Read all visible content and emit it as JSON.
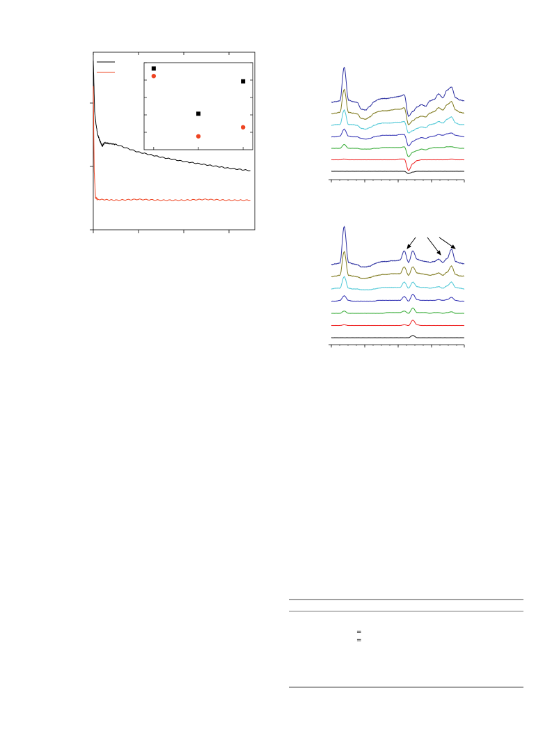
{
  "colors": {
    "black": "#000000",
    "red": "#ee4422",
    "navy": "#2b2fa0",
    "olive": "#7f7a1e",
    "cyan": "#4cc7d6",
    "blue": "#3232b4",
    "green": "#33aa33",
    "red_spec": "#ee2020",
    "black_spec": "#111111"
  },
  "table_marks": [
    "=",
    "="
  ],
  "chart_data": [
    {
      "type": "line",
      "grid": false,
      "legend_position": "top-left",
      "series": [
        {
          "color": "black",
          "x": [
            0.0,
            0.03,
            0.06,
            0.1,
            0.15,
            0.2,
            0.25,
            0.35,
            0.5,
            1.0,
            1.5,
            2.0,
            2.5,
            3.0,
            3.5
          ],
          "y": [
            2.0,
            1.4,
            1.25,
            1.12,
            1.05,
            0.99,
            1.03,
            1.02,
            1.01,
            0.92,
            0.86,
            0.81,
            0.77,
            0.73,
            0.7
          ]
        },
        {
          "color": "red",
          "x": [
            0.0,
            0.02,
            0.05,
            0.1,
            0.5,
            1.0,
            1.5,
            2.0,
            2.5,
            3.0,
            3.5
          ],
          "y": [
            1.7,
            0.7,
            0.38,
            0.36,
            0.35,
            0.36,
            0.35,
            0.35,
            0.36,
            0.35,
            0.35
          ]
        }
      ],
      "xlim": [
        0,
        3.6
      ],
      "ylim": [
        0,
        2.1
      ],
      "inset": {
        "type": "scatter",
        "xlim": [
          0,
          3.6
        ],
        "ylim": [
          0,
          1.1
        ],
        "series": [
          {
            "color": "black",
            "marker": "square",
            "x": [
              0.15,
              1.8,
              3.45
            ],
            "y": [
              1.05,
              0.45,
              0.88
            ]
          },
          {
            "color": "red",
            "marker": "circle",
            "x": [
              0.15,
              1.8,
              3.45
            ],
            "y": [
              0.95,
              0.15,
              0.27
            ]
          }
        ]
      }
    },
    {
      "type": "line",
      "panel": "upper",
      "grid": false,
      "series": [
        {
          "color": "navy",
          "y": [
            0.0,
            0.1,
            0.2,
            4.6,
            0.3,
            0.1,
            0.0,
            -0.9,
            -1.0,
            -0.5,
            0.1,
            0.4,
            0.5,
            0.5,
            0.6,
            0.7,
            0.8,
            1.0,
            -1.8,
            -1.2,
            -0.6,
            -0.3,
            -0.5,
            0.2,
            0.4,
            1.1,
            0.6,
            1.6,
            2.0,
            0.6,
            0.3,
            0.2
          ]
        },
        {
          "color": "olive",
          "y": [
            0.0,
            0.1,
            0.2,
            3.2,
            0.2,
            0.1,
            0.0,
            -0.6,
            -0.7,
            -0.4,
            0.1,
            0.3,
            0.4,
            0.4,
            0.5,
            0.6,
            0.6,
            0.8,
            -1.4,
            -0.9,
            -0.5,
            -0.3,
            -0.4,
            0.1,
            0.3,
            0.8,
            0.5,
            1.2,
            1.6,
            0.5,
            0.2,
            0.1
          ]
        },
        {
          "color": "cyan",
          "y": [
            0.0,
            0.1,
            0.1,
            2.0,
            0.1,
            0.1,
            0.0,
            -0.4,
            -0.5,
            -0.3,
            0.0,
            0.2,
            0.3,
            0.3,
            0.3,
            0.4,
            0.4,
            0.5,
            -1.0,
            -0.7,
            -0.4,
            -0.2,
            -0.3,
            0.1,
            0.2,
            0.5,
            0.3,
            0.8,
            1.1,
            0.3,
            0.1,
            0.1
          ]
        },
        {
          "color": "blue",
          "y": [
            0.0,
            0.0,
            0.1,
            1.0,
            0.1,
            0.0,
            0.0,
            -0.2,
            -0.3,
            -0.2,
            0.0,
            0.1,
            0.2,
            0.2,
            0.2,
            0.2,
            0.3,
            0.3,
            -1.2,
            -0.6,
            -0.3,
            -0.1,
            -0.2,
            0.0,
            0.1,
            0.3,
            0.2,
            0.4,
            0.5,
            0.2,
            0.1,
            0.0
          ]
        },
        {
          "color": "green",
          "y": [
            0.0,
            0.0,
            0.0,
            0.5,
            0.0,
            0.0,
            0.0,
            -0.1,
            -0.1,
            -0.1,
            0.0,
            0.0,
            0.1,
            0.1,
            0.1,
            0.1,
            0.1,
            0.2,
            -1.1,
            -0.5,
            -0.3,
            -0.1,
            -0.2,
            0.0,
            0.1,
            0.1,
            0.1,
            0.2,
            0.2,
            0.1,
            0.0,
            0.0
          ]
        },
        {
          "color": "red_spec",
          "y": [
            0.0,
            0.0,
            0.0,
            0.1,
            0.0,
            0.0,
            0.0,
            0.0,
            0.0,
            0.0,
            0.0,
            0.0,
            0.0,
            0.0,
            0.0,
            0.0,
            0.1,
            0.1,
            -1.4,
            -0.5,
            -0.1,
            0.0,
            0.0,
            0.0,
            0.0,
            0.0,
            0.0,
            0.0,
            0.1,
            0.0,
            0.0,
            0.0
          ]
        },
        {
          "color": "black_spec",
          "y": [
            0.0,
            0.0,
            0.0,
            0.0,
            0.0,
            0.0,
            0.0,
            0.0,
            0.0,
            0.0,
            0.0,
            0.0,
            0.0,
            0.0,
            0.0,
            0.0,
            0.0,
            0.0,
            -0.3,
            -0.1,
            0.0,
            0.0,
            0.0,
            0.0,
            0.0,
            0.0,
            0.0,
            0.0,
            0.0,
            0.0,
            0.0,
            0.0
          ]
        }
      ]
    },
    {
      "type": "line",
      "panel": "lower",
      "grid": false,
      "series": [
        {
          "color": "navy",
          "y": [
            0.0,
            0.1,
            0.2,
            5.0,
            0.3,
            0.1,
            0.0,
            -0.3,
            -0.3,
            -0.2,
            0.1,
            0.3,
            0.4,
            0.4,
            0.5,
            0.5,
            0.6,
            1.8,
            0.3,
            1.8,
            0.7,
            0.5,
            0.4,
            0.3,
            0.4,
            0.7,
            0.3,
            0.8,
            2.0,
            0.4,
            0.2,
            0.1
          ]
        },
        {
          "color": "olive",
          "y": [
            0.0,
            0.1,
            0.2,
            3.3,
            0.2,
            0.1,
            0.0,
            -0.2,
            -0.2,
            -0.1,
            0.1,
            0.2,
            0.3,
            0.3,
            0.4,
            0.4,
            0.4,
            1.3,
            0.2,
            1.3,
            0.5,
            0.4,
            0.3,
            0.2,
            0.3,
            0.5,
            0.2,
            0.6,
            1.4,
            0.3,
            0.1,
            0.1
          ]
        },
        {
          "color": "cyan",
          "y": [
            0.0,
            0.1,
            0.1,
            1.6,
            0.1,
            0.0,
            0.0,
            -0.1,
            -0.1,
            -0.1,
            0.0,
            0.1,
            0.2,
            0.2,
            0.2,
            0.2,
            0.2,
            0.9,
            0.1,
            0.9,
            0.3,
            0.2,
            0.2,
            0.1,
            0.2,
            0.3,
            0.1,
            0.4,
            0.9,
            0.2,
            0.1,
            0.0
          ]
        },
        {
          "color": "blue",
          "y": [
            0.0,
            0.0,
            0.1,
            0.7,
            0.1,
            0.0,
            0.0,
            0.0,
            0.0,
            0.0,
            0.0,
            0.1,
            0.1,
            0.1,
            0.1,
            0.1,
            0.1,
            0.6,
            0.0,
            0.9,
            0.2,
            0.1,
            0.1,
            0.1,
            0.1,
            0.2,
            0.1,
            0.2,
            0.5,
            0.1,
            0.0,
            0.0
          ]
        },
        {
          "color": "green",
          "y": [
            0.0,
            0.0,
            0.0,
            0.3,
            0.0,
            0.0,
            0.0,
            0.0,
            0.0,
            0.0,
            0.0,
            0.0,
            0.0,
            0.1,
            0.1,
            0.1,
            0.1,
            0.3,
            0.0,
            0.7,
            0.1,
            0.1,
            0.1,
            0.0,
            0.1,
            0.1,
            0.0,
            0.1,
            0.2,
            0.0,
            0.0,
            0.0
          ]
        },
        {
          "color": "red_spec",
          "y": [
            0.0,
            0.0,
            0.0,
            0.1,
            0.0,
            0.0,
            0.0,
            0.0,
            0.0,
            0.0,
            0.0,
            0.0,
            0.0,
            0.0,
            0.0,
            0.0,
            0.0,
            0.1,
            0.0,
            0.7,
            0.1,
            0.0,
            0.0,
            0.0,
            0.0,
            0.0,
            0.0,
            0.0,
            0.0,
            0.0,
            0.0,
            0.0
          ]
        },
        {
          "color": "black_spec",
          "y": [
            0.0,
            0.0,
            0.0,
            0.0,
            0.0,
            0.0,
            0.0,
            0.0,
            0.0,
            0.0,
            0.0,
            0.0,
            0.0,
            0.0,
            0.0,
            0.0,
            0.0,
            0.0,
            0.0,
            0.3,
            0.0,
            0.0,
            0.0,
            0.0,
            0.0,
            0.0,
            0.0,
            0.0,
            0.0,
            0.0,
            0.0,
            0.0
          ]
        }
      ],
      "annotations": [
        {
          "type": "arrow",
          "x_index": 17
        },
        {
          "type": "arrow",
          "x_index": 25
        },
        {
          "type": "arrow",
          "x_index": 28
        }
      ]
    }
  ]
}
